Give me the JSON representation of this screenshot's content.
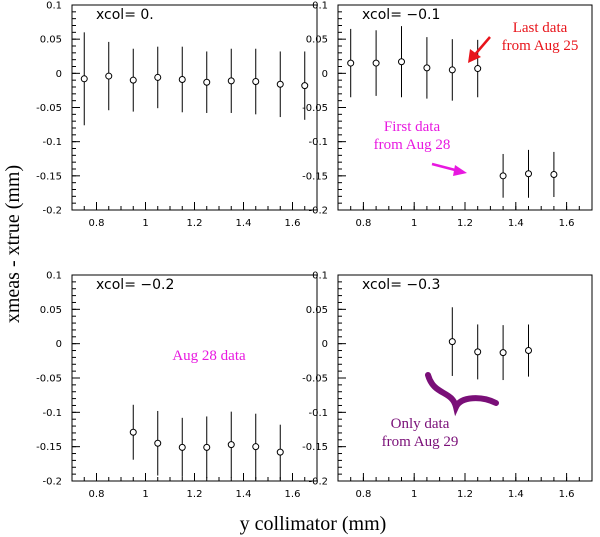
{
  "figure": {
    "xlabel": "y collimator (mm)",
    "ylabel": "xmeas - xtrue (mm)"
  },
  "colors": {
    "red": "#e8141b",
    "magenta": "#e818e0",
    "purple": "#7a0f78",
    "axis": "#000000"
  },
  "chart_data": [
    {
      "type": "scatter",
      "title": "xcol= 0.",
      "xlim": [
        0.7,
        1.7
      ],
      "ylim": [
        -0.2,
        0.1
      ],
      "xticks": [
        "0.8",
        "1",
        "1.2",
        "1.4",
        "1.6"
      ],
      "yticks": [
        "0.1",
        "0.05",
        "0",
        "-0.05",
        "-0.1",
        "-0.15",
        "-0.2"
      ],
      "series": [
        {
          "x": [
            0.75,
            0.85,
            0.95,
            1.05,
            1.15,
            1.25,
            1.35,
            1.45,
            1.55,
            1.65
          ],
          "y": [
            -0.008,
            -0.004,
            -0.01,
            -0.006,
            -0.009,
            -0.013,
            -0.011,
            -0.012,
            -0.016,
            -0.018
          ],
          "err": [
            0.068,
            0.05,
            0.046,
            0.045,
            0.048,
            0.045,
            0.047,
            0.048,
            0.048,
            0.05
          ]
        }
      ],
      "annotations": []
    },
    {
      "type": "scatter",
      "title": "xcol= −0.1",
      "xlim": [
        0.7,
        1.7
      ],
      "ylim": [
        -0.2,
        0.1
      ],
      "xticks": [
        "0.8",
        "1",
        "1.2",
        "1.4",
        "1.6"
      ],
      "yticks": [
        "0.1",
        "0.05",
        "0",
        "-0.05",
        "-0.1",
        "-0.15",
        "-0.2"
      ],
      "series": [
        {
          "x": [
            0.75,
            0.85,
            0.95,
            1.05,
            1.15,
            1.25
          ],
          "y": [
            0.015,
            0.015,
            0.017,
            0.008,
            0.005,
            0.007
          ],
          "err": [
            0.05,
            0.048,
            0.052,
            0.045,
            0.045,
            0.042
          ]
        },
        {
          "x": [
            1.35,
            1.45,
            1.55
          ],
          "y": [
            -0.15,
            -0.147,
            -0.148
          ],
          "err": [
            0.032,
            0.035,
            0.033
          ]
        }
      ],
      "annotations": [
        {
          "lines": [
            "Last data",
            "from Aug 25"
          ],
          "color": "red"
        },
        {
          "lines": [
            "First data",
            "from Aug 28"
          ],
          "color": "magenta"
        }
      ]
    },
    {
      "type": "scatter",
      "title": "xcol= −0.2",
      "xlim": [
        0.7,
        1.7
      ],
      "ylim": [
        -0.2,
        0.1
      ],
      "xticks": [
        "0.8",
        "1",
        "1.2",
        "1.4",
        "1.6"
      ],
      "yticks": [
        "0.1",
        "0.05",
        "0",
        "-0.05",
        "-0.1",
        "-0.15",
        "-0.2"
      ],
      "series": [
        {
          "x": [
            0.95,
            1.05,
            1.15,
            1.25,
            1.35,
            1.45,
            1.55
          ],
          "y": [
            -0.129,
            -0.145,
            -0.151,
            -0.151,
            -0.147,
            -0.15,
            -0.158
          ],
          "err": [
            0.04,
            0.047,
            0.043,
            0.045,
            0.048,
            0.048,
            0.04
          ]
        }
      ],
      "annotations": [
        {
          "lines": [
            "Aug 28 data"
          ],
          "color": "magenta"
        }
      ]
    },
    {
      "type": "scatter",
      "title": "xcol= −0.3",
      "xlim": [
        0.7,
        1.7
      ],
      "ylim": [
        -0.2,
        0.1
      ],
      "xticks": [
        "0.8",
        "1",
        "1.2",
        "1.4",
        "1.6"
      ],
      "yticks": [
        "0.1",
        "0.05",
        "0",
        "-0.05",
        "-0.1",
        "-0.15",
        "-0.2"
      ],
      "series": [
        {
          "x": [
            1.15,
            1.25,
            1.35,
            1.45
          ],
          "y": [
            0.003,
            -0.012,
            -0.013,
            -0.01
          ],
          "err": [
            0.05,
            0.04,
            0.04,
            0.038
          ]
        }
      ],
      "annotations": [
        {
          "lines": [
            "Only data",
            "from Aug 29"
          ],
          "color": "purple"
        }
      ]
    }
  ]
}
